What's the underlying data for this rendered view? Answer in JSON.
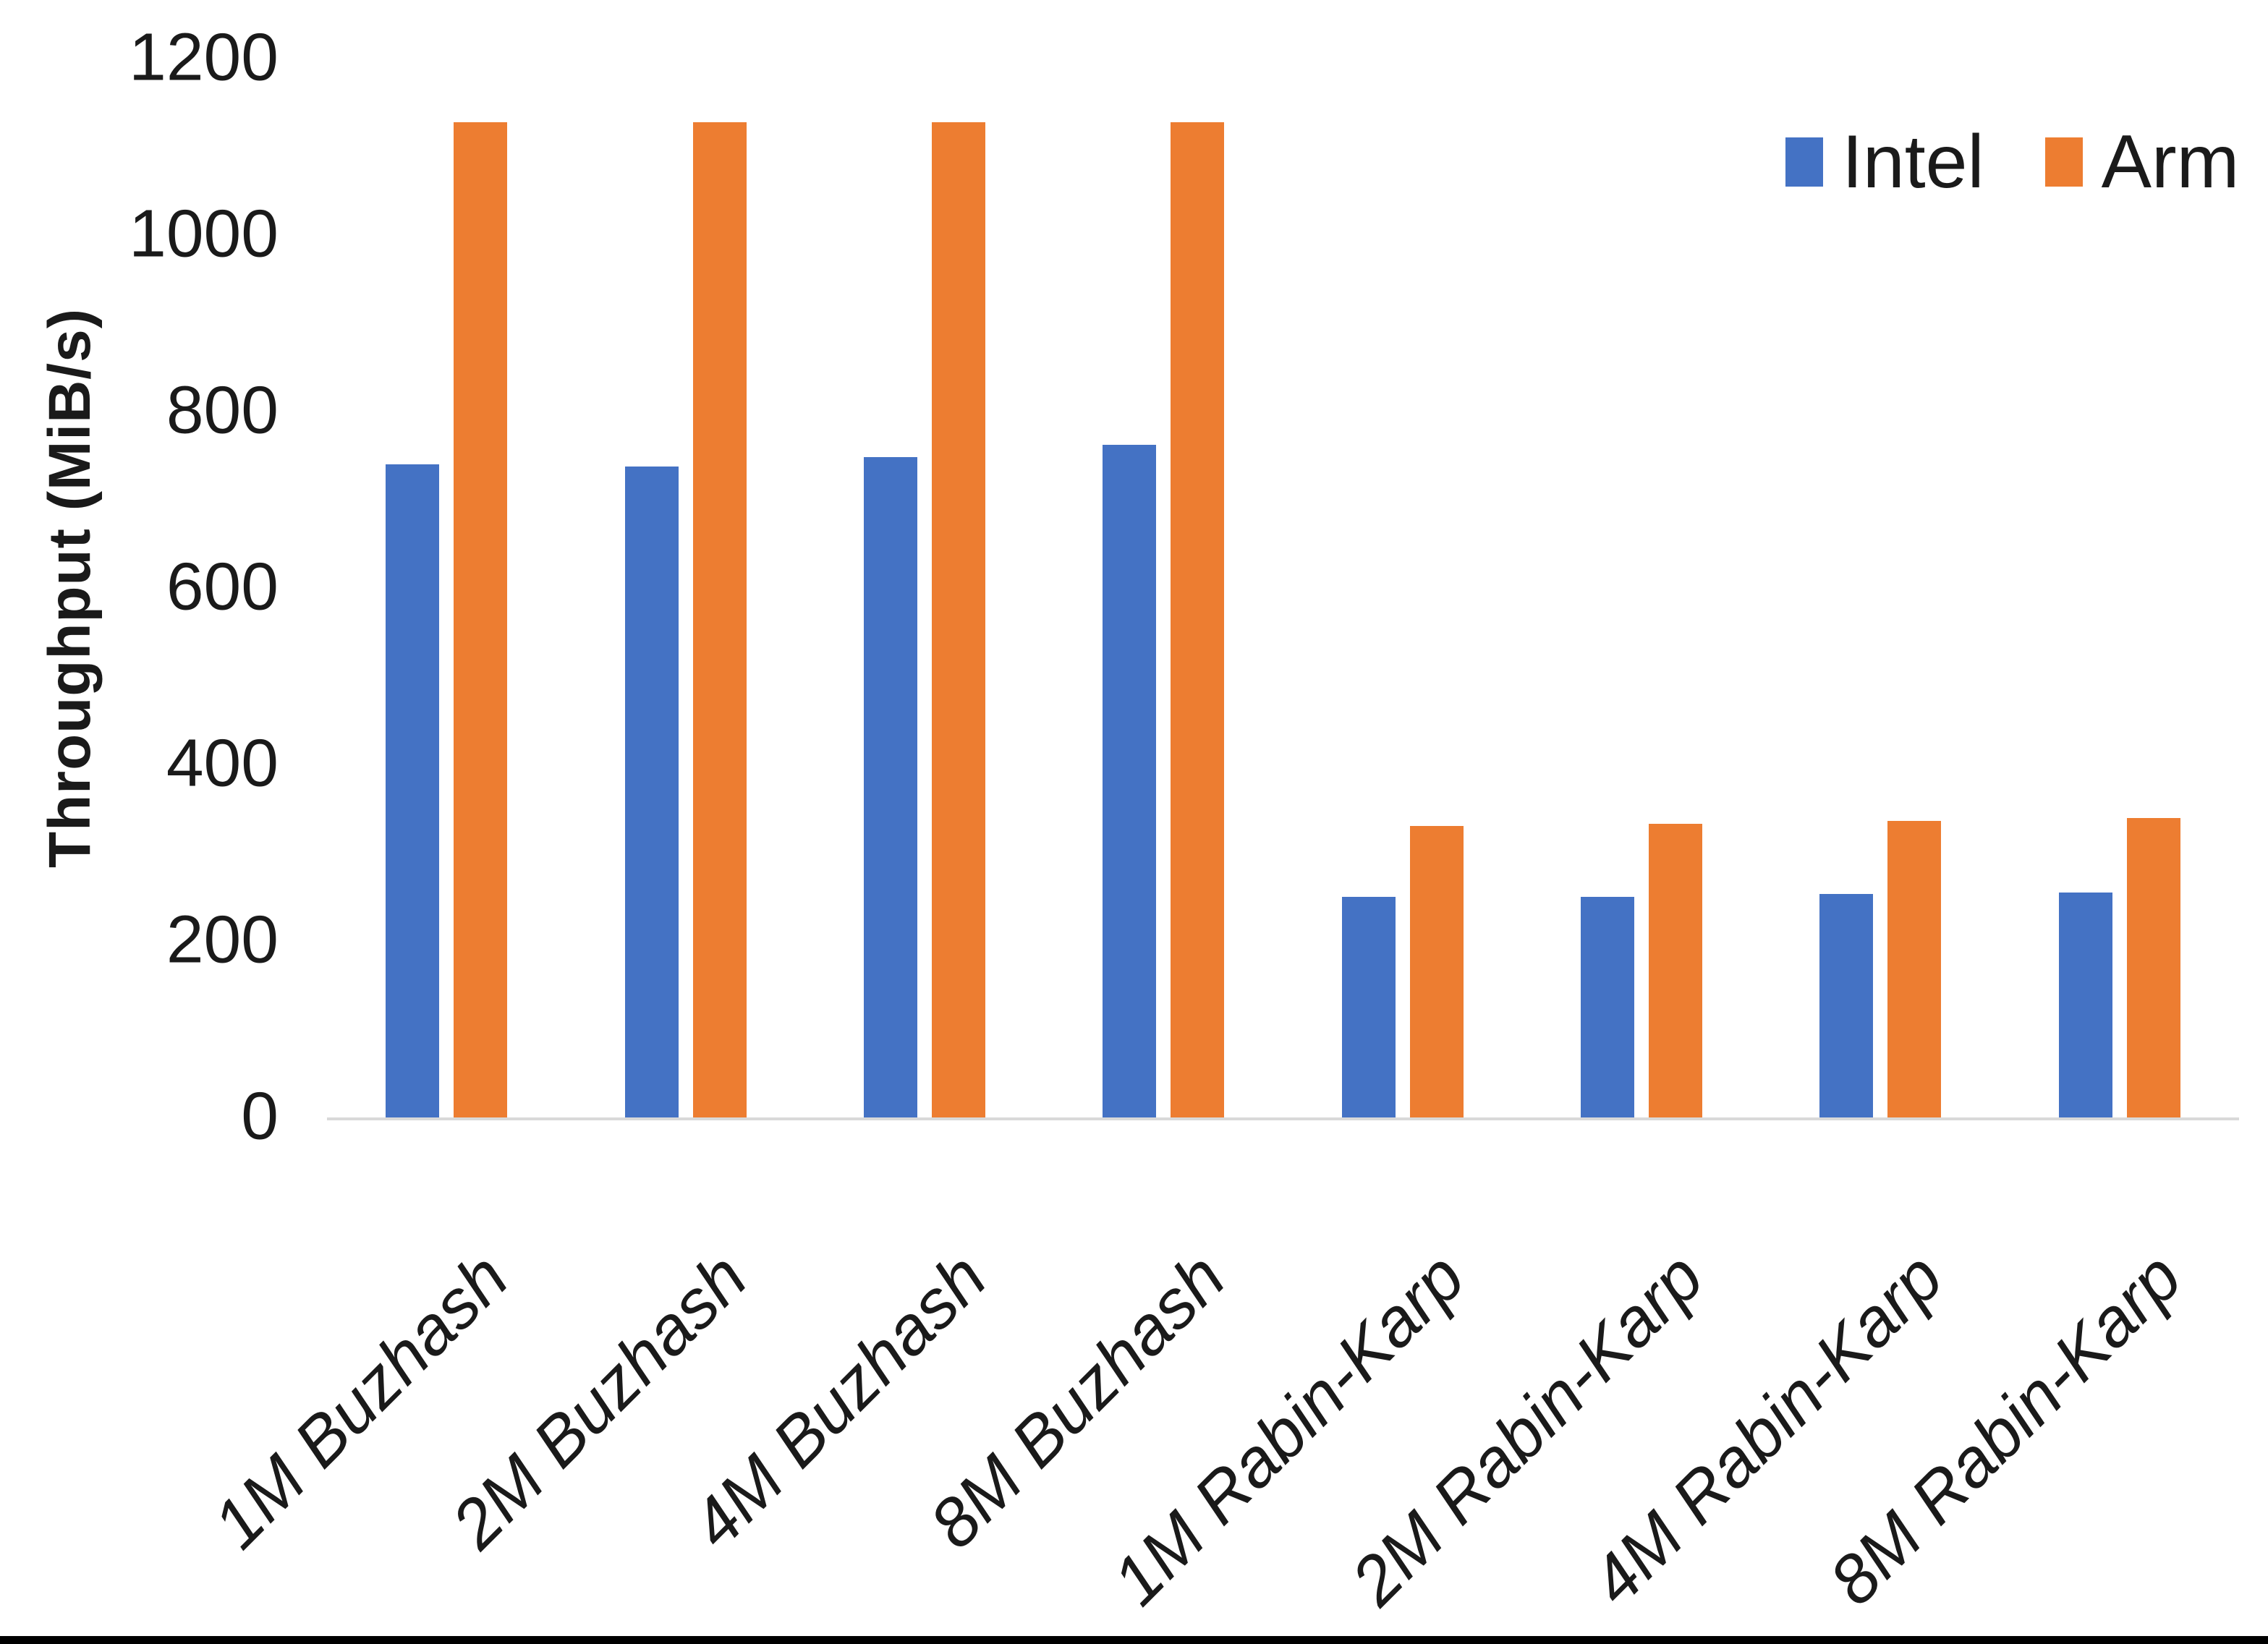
{
  "chart_data": {
    "type": "bar",
    "title": "",
    "xlabel": "",
    "ylabel": "Throughput (MiB/s)",
    "ylim": [
      0,
      1200
    ],
    "yticks": [
      0,
      200,
      400,
      600,
      800,
      1000,
      1200
    ],
    "grid": false,
    "legend_position": "top-right",
    "categories": [
      "1M Buzhash",
      "2M Buzhash",
      "4M Buzhash",
      "8M Buzhash",
      "1M Rabin-Karp",
      "2M Rabin-Karp",
      "4M Rabin-Karp",
      "8M Rabin-Karp"
    ],
    "series": [
      {
        "name": "Intel",
        "color": "#4472C4",
        "values": [
          740,
          738,
          748,
          762,
          250,
          250,
          253,
          255
        ]
      },
      {
        "name": "Arm",
        "color": "#ED7D31",
        "values": [
          1128,
          1128,
          1128,
          1128,
          330,
          333,
          336,
          339
        ]
      }
    ]
  },
  "colors": {
    "axis_line": "#D9D9D9",
    "text": "#1a1a1a",
    "bottom_border": "#000000",
    "background": "#ffffff"
  }
}
